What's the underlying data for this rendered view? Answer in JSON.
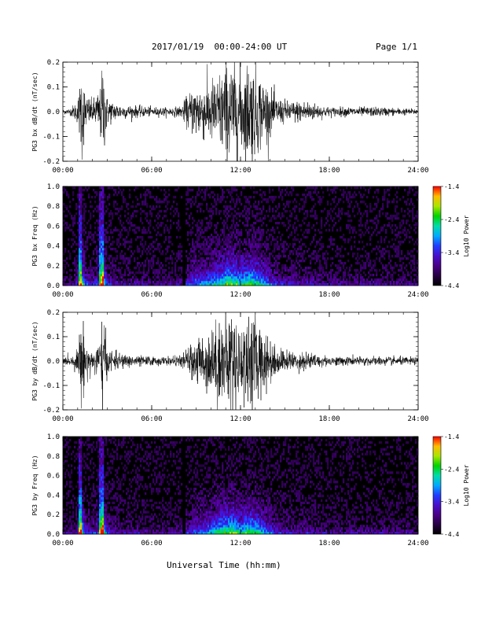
{
  "header": {
    "date_range": "2017/01/19  00:00-24:00 UT",
    "page": "Page 1/1"
  },
  "footer": {
    "xlabel": "Universal Time (hh:mm)"
  },
  "chart_data": [
    {
      "type": "line",
      "ylabel": "PG3 bx dB/dt (nT/sec)",
      "ylim": [
        -0.2,
        0.2
      ],
      "yticks": [
        "0.2",
        "0.1",
        "0.0",
        "-0.1",
        "-0.2"
      ],
      "xticks": [
        "00:00",
        "06:00",
        "12:00",
        "18:00",
        "24:00"
      ],
      "xlim_hours": [
        0,
        24
      ],
      "envelope": {
        "hours": [
          0,
          0.5,
          1,
          1.1,
          1.3,
          1.5,
          2,
          2.5,
          2.7,
          3,
          3.5,
          4,
          5,
          6,
          7,
          7.5,
          8,
          8.5,
          9,
          9.5,
          10,
          10.5,
          11,
          11.5,
          12,
          12.5,
          13,
          13.5,
          14,
          14.5,
          15,
          16,
          16.5,
          17,
          18,
          19,
          20,
          21,
          22,
          23,
          24
        ],
        "amplitude": [
          0.01,
          0.015,
          0.05,
          0.1,
          0.22,
          0.08,
          0.05,
          0.1,
          0.22,
          0.06,
          0.04,
          0.03,
          0.025,
          0.02,
          0.018,
          0.02,
          0.025,
          0.08,
          0.12,
          0.12,
          0.14,
          0.16,
          0.22,
          0.22,
          0.18,
          0.22,
          0.2,
          0.15,
          0.1,
          0.06,
          0.05,
          0.045,
          0.05,
          0.035,
          0.02,
          0.02,
          0.02,
          0.02,
          0.018,
          0.015,
          0.012
        ]
      }
    },
    {
      "type": "heatmap",
      "ylabel": "PG3 bx Freq (Hz)",
      "ylim": [
        0,
        1.0
      ],
      "yticks": [
        "1.0",
        "0.8",
        "0.6",
        "0.4",
        "0.2",
        "0.0"
      ],
      "xticks": [
        "00:00",
        "06:00",
        "12:00",
        "18:00",
        "24:00"
      ],
      "colorbar": {
        "label": "Log10 Power",
        "ticks": [
          "-1.4",
          "-2.4",
          "-3.4",
          "-4.4"
        ],
        "range": [
          -4.4,
          -1.4
        ]
      },
      "bright_spikes_hours": [
        1.2,
        2.6
      ],
      "data_gap_hours": [
        8.1,
        8.3
      ]
    },
    {
      "type": "line",
      "ylabel": "PG3 by dB/dt (nT/sec)",
      "ylim": [
        -0.2,
        0.2
      ],
      "yticks": [
        "0.2",
        "0.1",
        "0.0",
        "-0.1",
        "-0.2"
      ],
      "xticks": [
        "00:00",
        "06:00",
        "12:00",
        "18:00",
        "24:00"
      ],
      "xlim_hours": [
        0,
        24
      ],
      "envelope": {
        "hours": [
          0,
          0.5,
          1,
          1.1,
          1.3,
          1.5,
          2,
          2.5,
          2.7,
          3,
          3.5,
          4,
          5,
          6,
          7,
          7.5,
          8,
          8.5,
          9,
          9.5,
          10,
          10.5,
          11,
          11.5,
          12,
          12.5,
          13,
          13.5,
          14,
          14.5,
          15,
          16,
          16.5,
          17,
          18,
          19,
          20,
          21,
          22,
          23,
          24
        ],
        "amplitude": [
          0.015,
          0.02,
          0.05,
          0.1,
          0.21,
          0.08,
          0.05,
          0.1,
          0.22,
          0.06,
          0.04,
          0.03,
          0.025,
          0.02,
          0.018,
          0.02,
          0.025,
          0.06,
          0.1,
          0.12,
          0.14,
          0.18,
          0.22,
          0.22,
          0.16,
          0.22,
          0.2,
          0.14,
          0.1,
          0.06,
          0.045,
          0.04,
          0.045,
          0.03,
          0.02,
          0.02,
          0.02,
          0.02,
          0.018,
          0.018,
          0.015
        ]
      }
    },
    {
      "type": "heatmap",
      "ylabel": "PG3 by Freq (Hz)",
      "ylim": [
        0,
        1.0
      ],
      "yticks": [
        "1.0",
        "0.8",
        "0.6",
        "0.4",
        "0.2",
        "0.0"
      ],
      "xticks": [
        "00:00",
        "06:00",
        "12:00",
        "18:00",
        "24:00"
      ],
      "colorbar": {
        "label": "Log10 Power",
        "ticks": [
          "-1.4",
          "-2.4",
          "-3.4",
          "-4.4"
        ],
        "range": [
          -4.4,
          -1.4
        ]
      },
      "bright_spikes_hours": [
        1.2,
        2.6
      ],
      "data_gap_hours": [
        8.1,
        8.3
      ]
    }
  ]
}
